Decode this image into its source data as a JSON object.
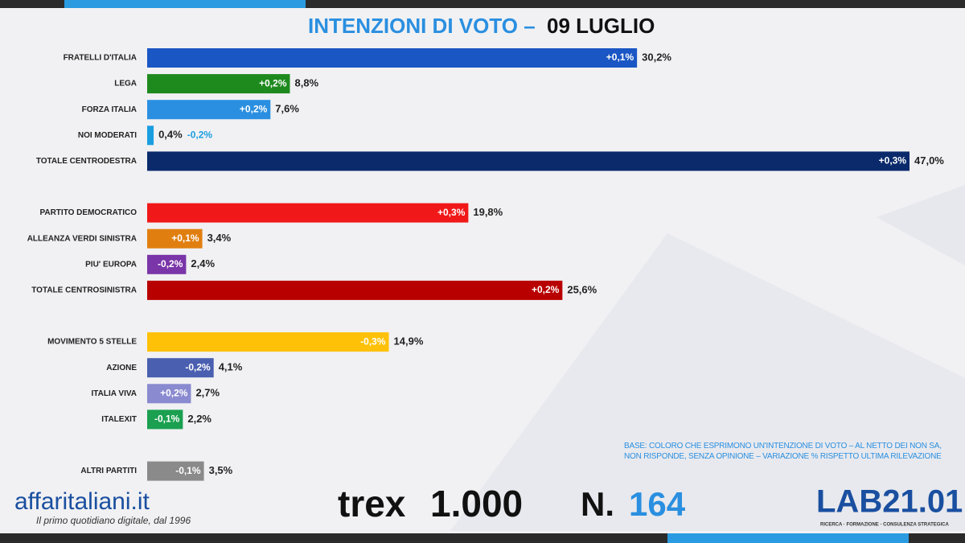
{
  "chart_data": {
    "type": "bar",
    "orientation": "horizontal",
    "title": "INTENZIONI DI VOTO –",
    "subtitle": "09 LUGLIO",
    "categories": [
      "FRATELLI D'ITALIA",
      "LEGA",
      "FORZA ITALIA",
      "NOI MODERATI",
      "TOTALE CENTRODESTRA",
      null,
      "PARTITO DEMOCRATICO",
      "ALLEANZA VERDI SINISTRA",
      "PIU' EUROPA",
      "TOTALE CENTROSINISTRA",
      null,
      "MOVIMENTO 5 STELLE",
      "AZIONE",
      "ITALIA VIVA",
      "ITALEXIT",
      null,
      "ALTRI PARTITI"
    ],
    "values": [
      30.2,
      8.8,
      7.6,
      0.4,
      47.0,
      null,
      19.8,
      3.4,
      2.4,
      25.6,
      null,
      14.9,
      4.1,
      2.7,
      2.2,
      null,
      3.5
    ],
    "value_labels": [
      "30,2%",
      "8,8%",
      "7,6%",
      "0,4%",
      "47,0%",
      null,
      "19,8%",
      "3,4%",
      "2,4%",
      "25,6%",
      null,
      "14,9%",
      "4,1%",
      "2,7%",
      "2,2%",
      null,
      "3,5%"
    ],
    "changes": [
      0.1,
      0.2,
      0.2,
      -0.2,
      0.3,
      null,
      0.3,
      0.1,
      -0.2,
      0.2,
      null,
      -0.3,
      -0.2,
      0.2,
      -0.1,
      null,
      -0.1
    ],
    "change_labels": [
      "+0,1%",
      "+0,2%",
      "+0,2%",
      "-0,2%",
      "+0,3%",
      null,
      "+0,3%",
      "+0,1%",
      "-0,2%",
      "+0,2%",
      null,
      "-0,3%",
      "-0,2%",
      "+0,2%",
      "-0,1%",
      null,
      "-0,1%"
    ],
    "colors": [
      "#1a56c4",
      "#1e8a1e",
      "#2a8fe0",
      "#1a9ee0",
      "#0a2a6b",
      null,
      "#f01818",
      "#e07f10",
      "#7a35a8",
      "#b80000",
      null,
      "#ffc107",
      "#4a5fb0",
      "#8a8ad0",
      "#1aa050",
      null,
      "#8a8a8a"
    ],
    "note": "BASE: COLORO CHE ESPRIMONO UN'INTENZIONE DI VOTO – AL NETTO DEI NON SA, NON RISPONDE, SENZA OPINIONE – VARIAZIONE % RISPETTO ULTIMA RILEVAZIONE"
  },
  "footer": {
    "brand": "affaritaliani.it",
    "tagline": "Il primo quotidiano digitale, dal 1996",
    "trex": "trex",
    "sample": "1.000",
    "issue_prefix": "N.",
    "issue": "164",
    "lab": "LAB21.01",
    "lab_tagline": "RICERCA · FORMAZIONE · CONSULENZA STRATEGICA"
  }
}
